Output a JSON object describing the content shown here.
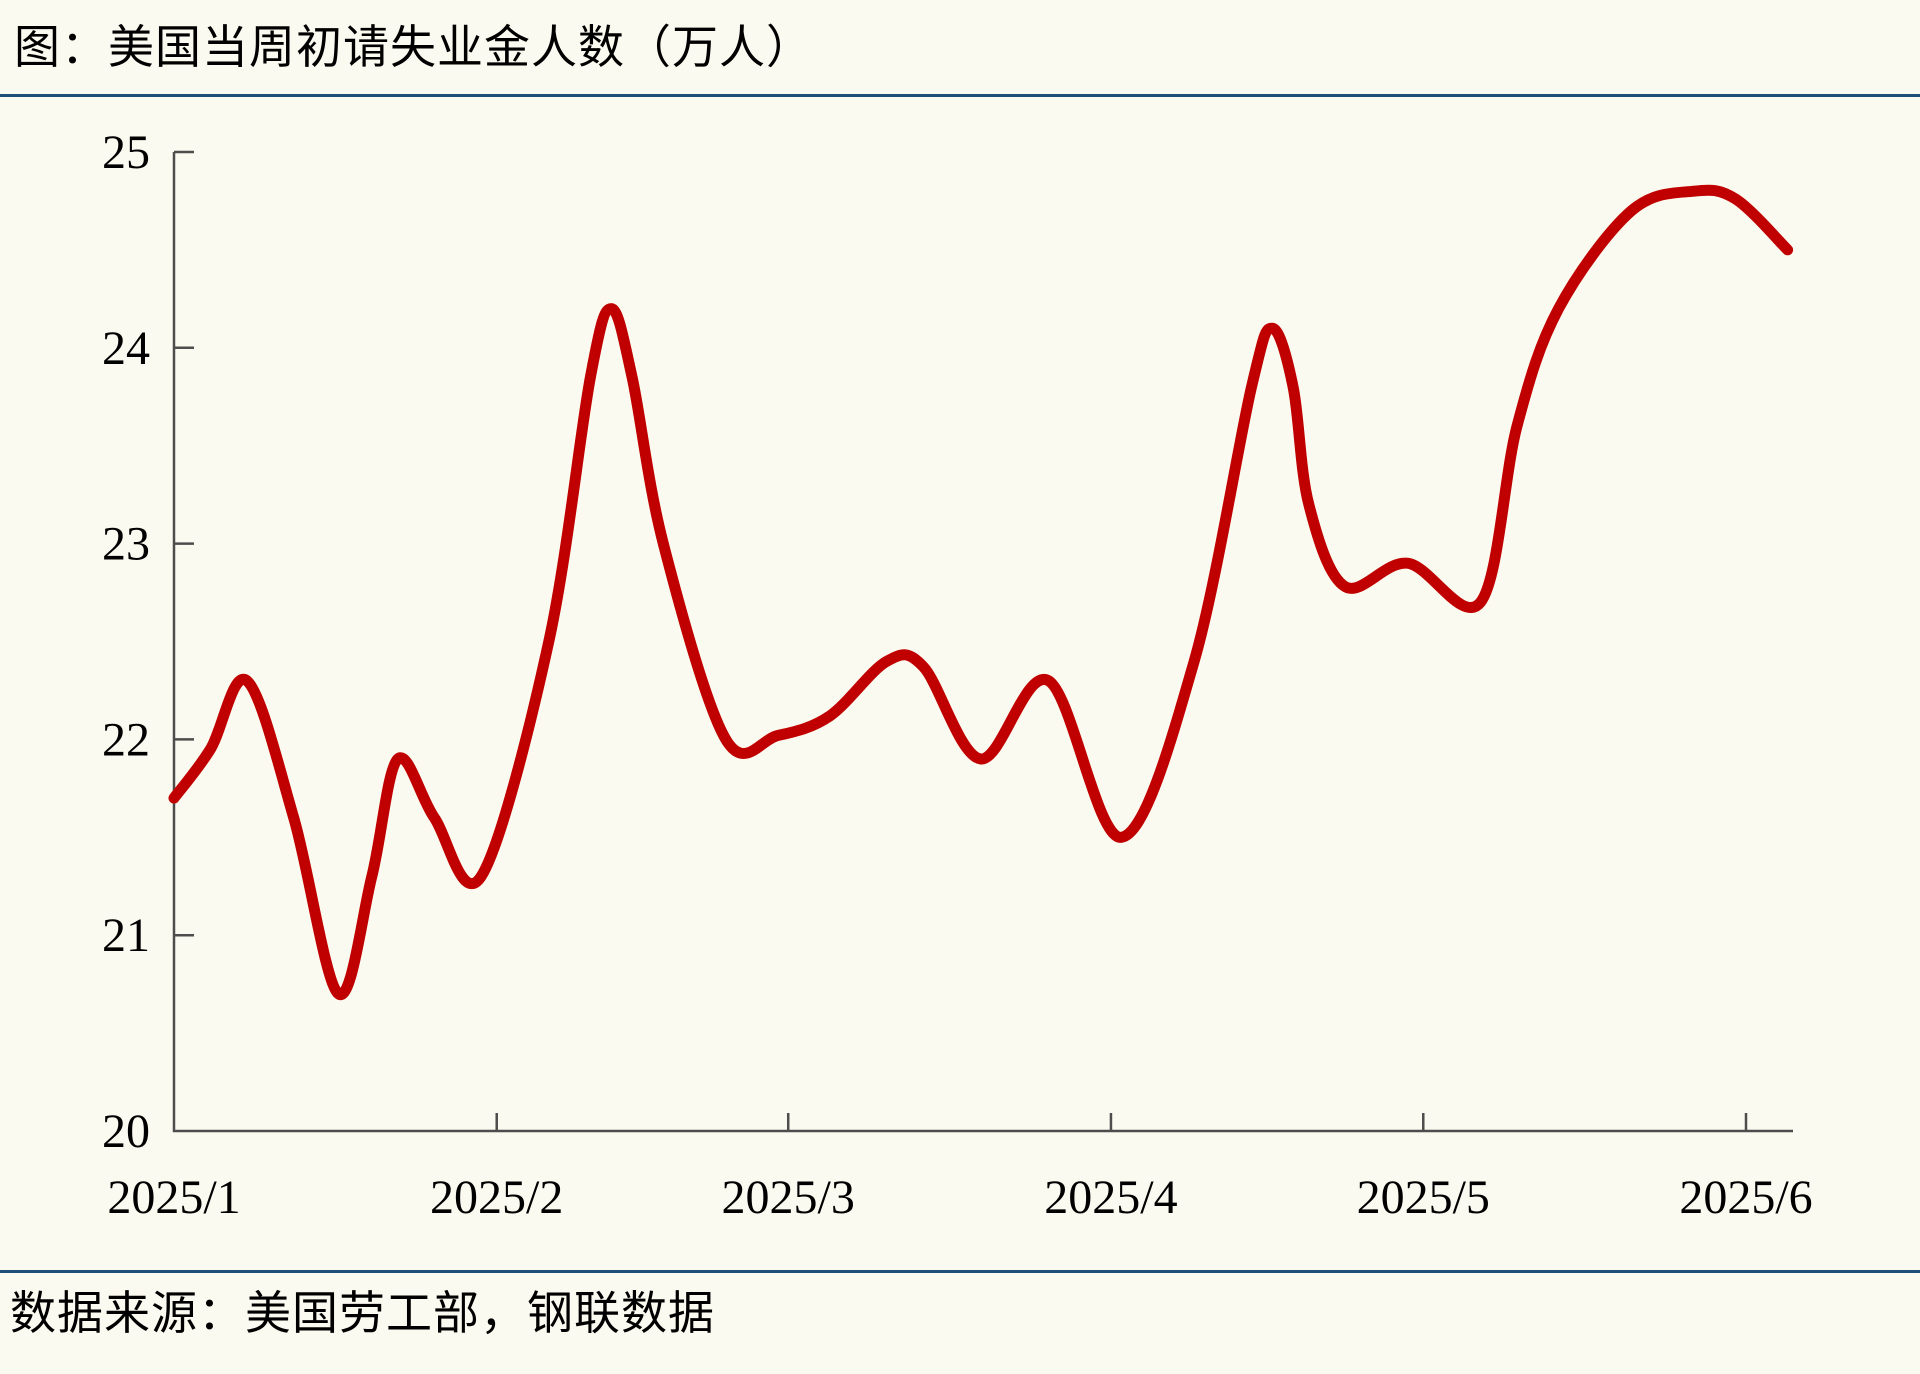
{
  "page": {
    "background_color": "#FBFAF0",
    "title": "图：美国当周初请失业金人数（万人）",
    "source": "数据来源：美国劳工部，钢联数据",
    "divider_color": "#1F4E79"
  },
  "chart_data": {
    "type": "line",
    "title": "美国当周初请失业金人数（万人）",
    "series_name": "美国当周初请失业金人数",
    "unit": "万人",
    "line_color": "#C00000",
    "axis_color": "#4D4D4D",
    "tick_label_color": "#000000",
    "grid": "off",
    "legend": "none",
    "y_axis": {
      "min": 20,
      "max": 25,
      "ticks": [
        20,
        21,
        22,
        23,
        24,
        25
      ]
    },
    "x_axis": {
      "note": "date axis, days counted from 2025-01-01",
      "domain_days": [
        0,
        155.5
      ],
      "ticks": [
        {
          "label": "2025/1",
          "day": 0
        },
        {
          "label": "2025/2",
          "day": 31
        },
        {
          "label": "2025/3",
          "day": 59
        },
        {
          "label": "2025/4",
          "day": 90
        },
        {
          "label": "2025/5",
          "day": 120
        },
        {
          "label": "2025/6",
          "day": 151
        }
      ]
    },
    "points": [
      {
        "d": 0,
        "v": 21.7
      },
      {
        "d": 3.5,
        "v": 21.95
      },
      {
        "d": 7,
        "v": 22.3
      },
      {
        "d": 11.5,
        "v": 21.6
      },
      {
        "d": 15.8,
        "v": 20.7
      },
      {
        "d": 19,
        "v": 21.3
      },
      {
        "d": 21.5,
        "v": 21.9
      },
      {
        "d": 25,
        "v": 21.6
      },
      {
        "d": 29.5,
        "v": 21.3
      },
      {
        "d": 36,
        "v": 22.5
      },
      {
        "d": 40,
        "v": 23.85
      },
      {
        "d": 42,
        "v": 24.2
      },
      {
        "d": 44,
        "v": 23.85
      },
      {
        "d": 47,
        "v": 23.0
      },
      {
        "d": 53,
        "v": 22.0
      },
      {
        "d": 58,
        "v": 22.02
      },
      {
        "d": 63,
        "v": 22.12
      },
      {
        "d": 68.5,
        "v": 22.4
      },
      {
        "d": 72,
        "v": 22.37
      },
      {
        "d": 77.5,
        "v": 21.9
      },
      {
        "d": 84,
        "v": 22.3
      },
      {
        "d": 91,
        "v": 21.5
      },
      {
        "d": 98,
        "v": 22.4
      },
      {
        "d": 103.5,
        "v": 23.8
      },
      {
        "d": 105.5,
        "v": 24.1
      },
      {
        "d": 107.5,
        "v": 23.8
      },
      {
        "d": 109,
        "v": 23.2
      },
      {
        "d": 112.5,
        "v": 22.78
      },
      {
        "d": 118.5,
        "v": 22.9
      },
      {
        "d": 125.5,
        "v": 22.7
      },
      {
        "d": 129,
        "v": 23.6
      },
      {
        "d": 133,
        "v": 24.2
      },
      {
        "d": 140,
        "v": 24.7
      },
      {
        "d": 146,
        "v": 24.8
      },
      {
        "d": 150,
        "v": 24.76
      },
      {
        "d": 155,
        "v": 24.5
      }
    ]
  }
}
